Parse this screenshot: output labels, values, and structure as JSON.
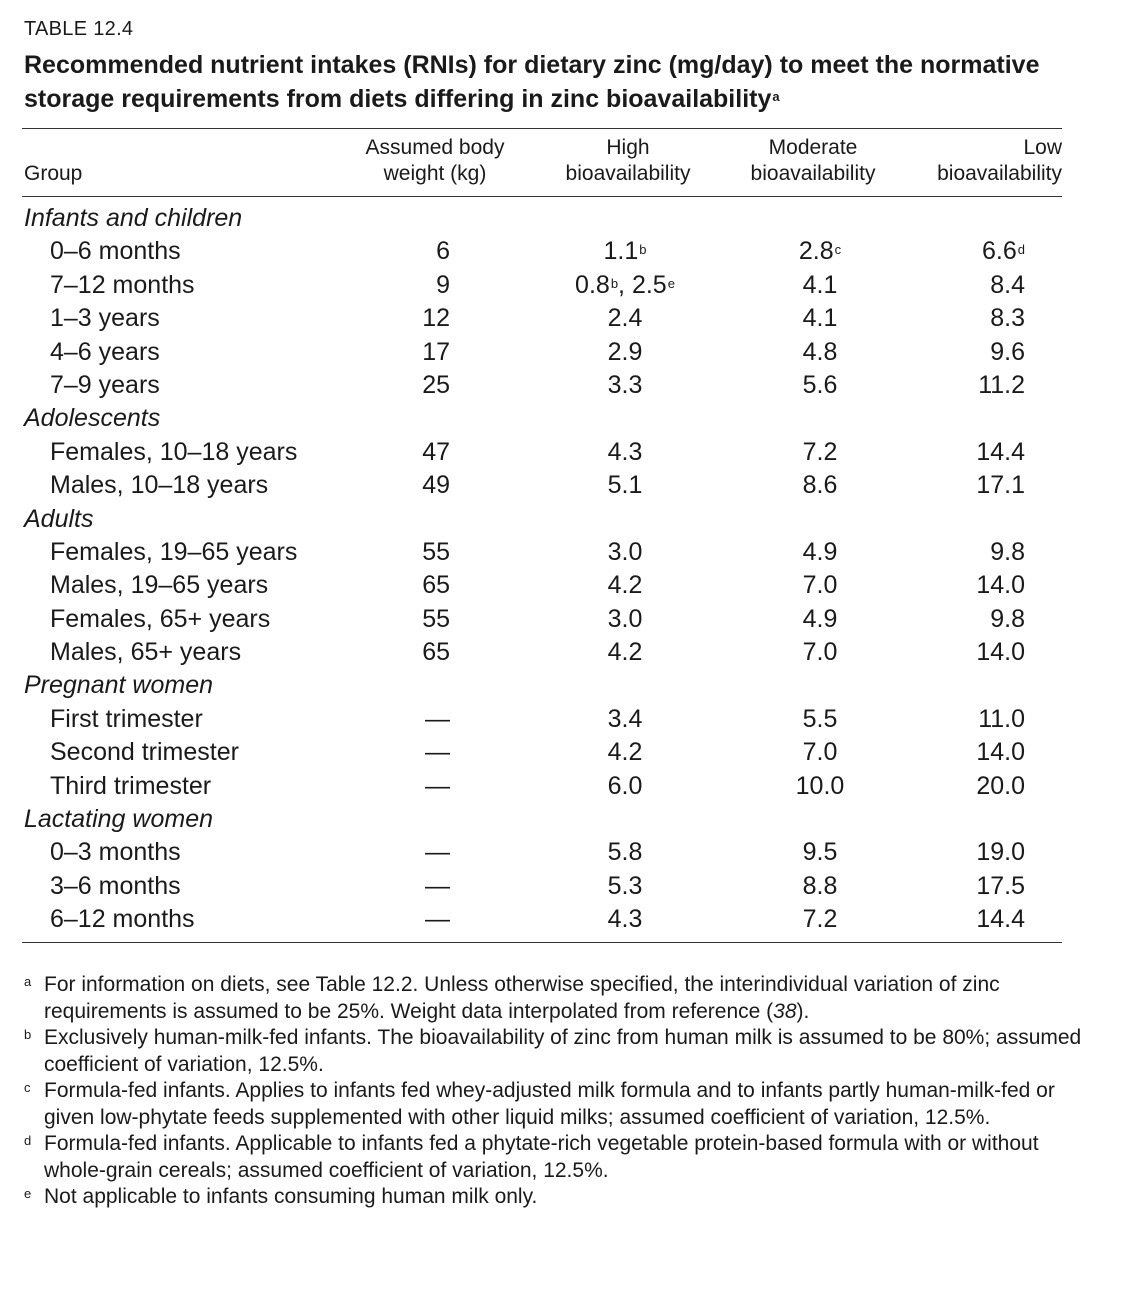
{
  "table_label": "TABLE 12.4",
  "title": {
    "text": "Recommended nutrient intakes (RNIs) for dietary zinc (mg/day) to meet the normative storage requirements from diets differing in zinc bioavailability",
    "mark": "a"
  },
  "headers": {
    "group": "Group",
    "weight_l1": "Assumed body",
    "weight_l2": "weight (kg)",
    "high_l1": "High",
    "high_l2": "bioavailability",
    "mod_l1": "Moderate",
    "mod_l2": "bioavailability",
    "low_l1": "Low",
    "low_l2": "bioavailability"
  },
  "rows": [
    {
      "type": "section",
      "label": "Infants and children"
    },
    {
      "type": "sub",
      "label": "0–6 months",
      "weight": "6",
      "high": "1.1",
      "high_sup": "b",
      "moderate": "2.8",
      "moderate_sup": "c",
      "low": "6.6",
      "low_sup": "d"
    },
    {
      "type": "sub",
      "label": "7–12 months",
      "weight": "9",
      "high": "0.8",
      "high_sup": "b",
      "high_extra": ", 2.5",
      "high_extra_sup": "e",
      "moderate": "4.1",
      "low": "8.4"
    },
    {
      "type": "sub",
      "label": "1–3 years",
      "weight": "12",
      "high": "2.4",
      "moderate": "4.1",
      "low": "8.3"
    },
    {
      "type": "sub",
      "label": "4–6 years",
      "weight": "17",
      "high": "2.9",
      "moderate": "4.8",
      "low": "9.6"
    },
    {
      "type": "sub",
      "label": "7–9 years",
      "weight": "25",
      "high": "3.3",
      "moderate": "5.6",
      "low": "11.2"
    },
    {
      "type": "section",
      "label": "Adolescents"
    },
    {
      "type": "sub",
      "label": "Females, 10–18 years",
      "weight": "47",
      "high": "4.3",
      "moderate": "7.2",
      "low": "14.4"
    },
    {
      "type": "sub",
      "label": "Males, 10–18 years",
      "weight": "49",
      "high": "5.1",
      "moderate": "8.6",
      "low": "17.1"
    },
    {
      "type": "section",
      "label": "Adults"
    },
    {
      "type": "sub",
      "label": "Females, 19–65 years",
      "weight": "55",
      "high": "3.0",
      "moderate": "4.9",
      "low": "9.8"
    },
    {
      "type": "sub",
      "label": "Males, 19–65 years",
      "weight": "65",
      "high": "4.2",
      "moderate": "7.0",
      "low": "14.0"
    },
    {
      "type": "sub",
      "label": "Females, 65+ years",
      "weight": "55",
      "high": "3.0",
      "moderate": "4.9",
      "low": "9.8"
    },
    {
      "type": "sub",
      "label": "Males, 65+ years",
      "weight": "65",
      "high": "4.2",
      "moderate": "7.0",
      "low": "14.0"
    },
    {
      "type": "section",
      "label": "Pregnant women"
    },
    {
      "type": "sub",
      "label": "First trimester",
      "weight": "—",
      "high": "3.4",
      "moderate": "5.5",
      "low": "11.0"
    },
    {
      "type": "sub",
      "label": "Second trimester",
      "weight": "—",
      "high": "4.2",
      "moderate": "7.0",
      "low": "14.0"
    },
    {
      "type": "sub",
      "label": "Third trimester",
      "weight": "—",
      "high": "6.0",
      "moderate": "10.0",
      "low": "20.0"
    },
    {
      "type": "section",
      "label": "Lactating women"
    },
    {
      "type": "sub",
      "label": "0–3 months",
      "weight": "—",
      "high": "5.8",
      "moderate": "9.5",
      "low": "19.0"
    },
    {
      "type": "sub",
      "label": "3–6 months",
      "weight": "—",
      "high": "5.3",
      "moderate": "8.8",
      "low": "17.5"
    },
    {
      "type": "sub",
      "label": "6–12 months",
      "weight": "—",
      "high": "4.3",
      "moderate": "7.2",
      "low": "14.4"
    }
  ],
  "footnotes": [
    {
      "mark": "a",
      "text": "For information on diets, see Table 12.2. Unless otherwise specified, the interindividual variation of zinc requirements is assumed to be 25%. Weight data interpolated from reference (",
      "em": "38",
      "tail": ")."
    },
    {
      "mark": "b",
      "text": "Exclusively human-milk-fed infants. The bioavailability of zinc from human milk is assumed to be 80%; assumed coefficient of variation, 12.5%."
    },
    {
      "mark": "c",
      "text": "Formula-fed infants. Applies to infants fed whey-adjusted milk formula and to infants partly human-milk-fed or given low-phytate feeds supplemented with other liquid milks; assumed coefficient of variation, 12.5%."
    },
    {
      "mark": "d",
      "text": "Formula-fed infants. Applicable to infants fed a phytate-rich vegetable protein-based formula with or without whole-grain cereals; assumed coefficient of variation, 12.5%."
    },
    {
      "mark": "e",
      "text": "Not applicable to infants consuming human milk only."
    }
  ]
}
